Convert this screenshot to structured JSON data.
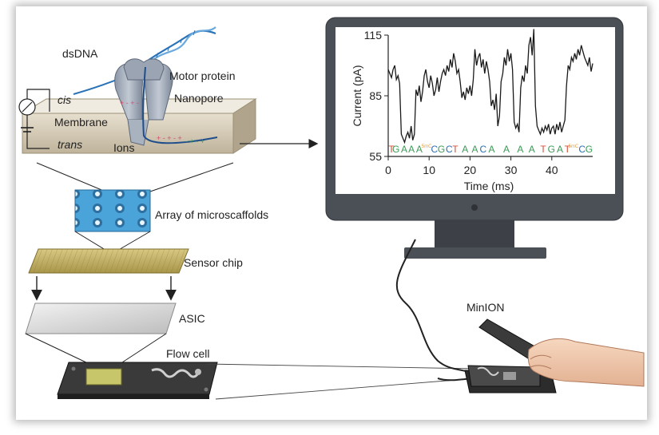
{
  "labels": {
    "dsdna": "dsDNA",
    "motor_protein": "Motor protein",
    "nanopore": "Nanopore",
    "cis": "cis",
    "membrane": "Membrane",
    "trans": "trans",
    "ions": "Ions",
    "array": "Array of microscaffolds",
    "sensor_chip": "Sensor chip",
    "asic": "ASIC",
    "flow_cell": "Flow cell",
    "minion": "MinION"
  },
  "chart_data": {
    "type": "line",
    "xlabel": "Time (ms)",
    "ylabel": "Current (pA)",
    "xlim": [
      0,
      50
    ],
    "ylim": [
      55,
      115
    ],
    "xticks": [
      0,
      10,
      20,
      30,
      40
    ],
    "yticks": [
      55,
      85,
      115
    ],
    "bases": [
      {
        "t": 0.8,
        "b": "T",
        "c": "#d4503c"
      },
      {
        "t": 1.9,
        "b": "G",
        "c": "#3b9a57"
      },
      {
        "t": 3.9,
        "b": "A",
        "c": "#3b9a57"
      },
      {
        "t": 5.7,
        "b": "A",
        "c": "#3b9a57"
      },
      {
        "t": 7.6,
        "b": "A",
        "c": "#3b9a57"
      },
      {
        "t": 9.4,
        "b": "5mC",
        "c": "#e8a33c"
      },
      {
        "t": 11.3,
        "b": "C",
        "c": "#2b6fb3"
      },
      {
        "t": 13.0,
        "b": "G",
        "c": "#3b9a57"
      },
      {
        "t": 14.9,
        "b": "C",
        "c": "#2b6fb3"
      },
      {
        "t": 16.4,
        "b": "T",
        "c": "#d4503c"
      },
      {
        "t": 18.8,
        "b": "A",
        "c": "#3b9a57"
      },
      {
        "t": 21.2,
        "b": "A",
        "c": "#3b9a57"
      },
      {
        "t": 23.2,
        "b": "C",
        "c": "#2b6fb3"
      },
      {
        "t": 25.3,
        "b": "A",
        "c": "#3b9a57"
      },
      {
        "t": 28.9,
        "b": "A",
        "c": "#3b9a57"
      },
      {
        "t": 32.3,
        "b": "A",
        "c": "#3b9a57"
      },
      {
        "t": 35.1,
        "b": "A",
        "c": "#3b9a57"
      },
      {
        "t": 37.9,
        "b": "T",
        "c": "#d4503c"
      },
      {
        "t": 39.9,
        "b": "G",
        "c": "#3b9a57"
      },
      {
        "t": 42.0,
        "b": "A",
        "c": "#3b9a57"
      },
      {
        "t": 43.8,
        "b": "T",
        "c": "#d4503c"
      },
      {
        "t": 45.3,
        "b": "5mC",
        "c": "#e8a33c"
      },
      {
        "t": 47.4,
        "b": "C",
        "c": "#2b6fb3"
      },
      {
        "t": 49.1,
        "b": "G",
        "c": "#3b9a57"
      }
    ],
    "x": [
      0,
      0.4,
      0.8,
      1.2,
      1.6,
      2.0,
      2.4,
      2.8,
      3.2,
      3.6,
      4.0,
      4.4,
      4.8,
      5.2,
      5.6,
      6.0,
      6.4,
      6.8,
      7.2,
      7.6,
      8.0,
      8.4,
      8.8,
      9.2,
      9.6,
      10.0,
      10.4,
      10.8,
      11.2,
      11.6,
      12.0,
      12.4,
      12.8,
      13.2,
      13.6,
      14.0,
      14.4,
      14.8,
      15.2,
      15.6,
      16.0,
      16.4,
      16.8,
      17.2,
      17.6,
      18.0,
      18.4,
      18.8,
      19.2,
      19.6,
      20.0,
      20.4,
      20.8,
      21.2,
      21.6,
      22.0,
      22.4,
      22.8,
      23.2,
      23.6,
      24.0,
      24.4,
      24.8,
      25.2,
      25.6,
      26.0,
      26.4,
      26.8,
      27.2,
      27.6,
      28.0,
      28.4,
      28.8,
      29.2,
      29.6,
      30.0,
      30.4,
      30.8,
      31.2,
      31.6,
      32.0,
      32.4,
      32.8,
      33.2,
      33.6,
      34.0,
      34.4,
      34.8,
      35.2,
      35.6,
      36.0,
      36.4,
      36.8,
      37.2,
      37.6,
      38.0,
      38.4,
      38.8,
      39.2,
      39.6,
      40.0,
      40.4,
      40.8,
      41.2,
      41.6,
      42.0,
      42.4,
      42.8,
      43.2,
      43.6,
      44.0,
      44.4,
      44.8,
      45.2,
      45.6,
      46.0,
      46.4,
      46.8,
      47.2,
      47.6,
      48.0,
      48.4,
      48.8,
      49.2,
      49.6,
      50.0
    ],
    "y": [
      98,
      96,
      94,
      98,
      100,
      93,
      95,
      91,
      66,
      64,
      62,
      65,
      67,
      64,
      70,
      63,
      66,
      88,
      85,
      90,
      82,
      87,
      95,
      98,
      92,
      89,
      95,
      91,
      85,
      88,
      94,
      87,
      92,
      96,
      98,
      95,
      100,
      97,
      103,
      99,
      106,
      102,
      96,
      98,
      92,
      84,
      87,
      83,
      89,
      86,
      90,
      85,
      93,
      108,
      100,
      104,
      106,
      99,
      103,
      96,
      102,
      98,
      92,
      80,
      83,
      78,
      86,
      70,
      75,
      92,
      96,
      104,
      100,
      108,
      102,
      106,
      98,
      72,
      69,
      71,
      67,
      89,
      95,
      92,
      100,
      96,
      110,
      114,
      105,
      118,
      80,
      70,
      68,
      66,
      69,
      67,
      70,
      68,
      71,
      66,
      69,
      70,
      66,
      71,
      68,
      72,
      67,
      70,
      73,
      90,
      100,
      98,
      104,
      102,
      106,
      103,
      108,
      105,
      110,
      107,
      104,
      102,
      100,
      104,
      97,
      101
    ]
  }
}
